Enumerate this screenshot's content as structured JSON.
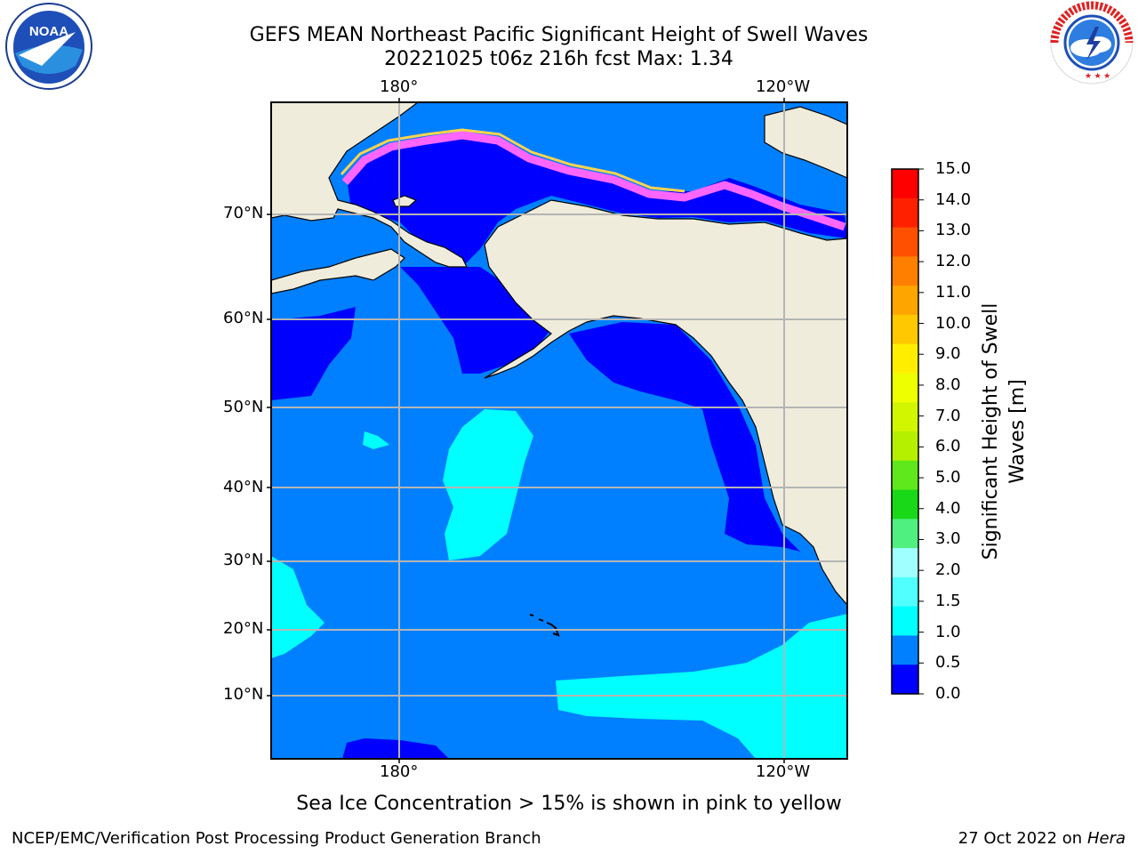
{
  "title_line1": "GEFS MEAN Northeast Pacific Significant Height of Swell Waves",
  "title_line2": "20221025 t06z 216h fcst   Max: 1.34",
  "lon_labels": [
    "180°",
    "120°W"
  ],
  "lat_labels": [
    "70°N",
    "60°N",
    "50°N",
    "40°N",
    "30°N",
    "20°N",
    "10°N"
  ],
  "colorbar": {
    "title_line1": "Significant Height of Swell",
    "title_line2": "Waves [m]",
    "ticks": [
      "15.0",
      "14.0",
      "13.0",
      "12.0",
      "11.0",
      "10.0",
      "9.0",
      "8.0",
      "7.0",
      "6.0",
      "5.0",
      "4.0",
      "3.0",
      "2.0",
      "1.5",
      "1.0",
      "0.5",
      "0.0"
    ],
    "colors": [
      "#ff0000",
      "#ff2000",
      "#ff5000",
      "#ff7f00",
      "#ffa500",
      "#ffc800",
      "#ffee00",
      "#eeff00",
      "#d2f500",
      "#b4f000",
      "#5fe81c",
      "#18d818",
      "#50f080",
      "#a0ffff",
      "#50ffff",
      "#00ffff",
      "#0080ff",
      "#0000ff"
    ]
  },
  "caption": "Sea Ice Concentration > 15% is shown in pink to yellow",
  "footer_left": "NCEP/EMC/Verification Post Processing Product Generation Branch",
  "footer_right_prefix": "27 Oct 2022 on ",
  "footer_right_host": "Hera",
  "logos": {
    "left": {
      "name": "noaa-logo",
      "text": "NOAA"
    },
    "right": {
      "name": "national-weather-service-logo",
      "text": "NATIONAL WEATHER SERVICE"
    }
  },
  "map_colors": {
    "land": "#efecdc",
    "ocean_05_10": "#0080ff",
    "ocean_00_05": "#0000ff",
    "ocean_10_15": "#00ffff",
    "sea_ice": "#ff66ff",
    "sea_ice_edge": "#ffd34d"
  }
}
